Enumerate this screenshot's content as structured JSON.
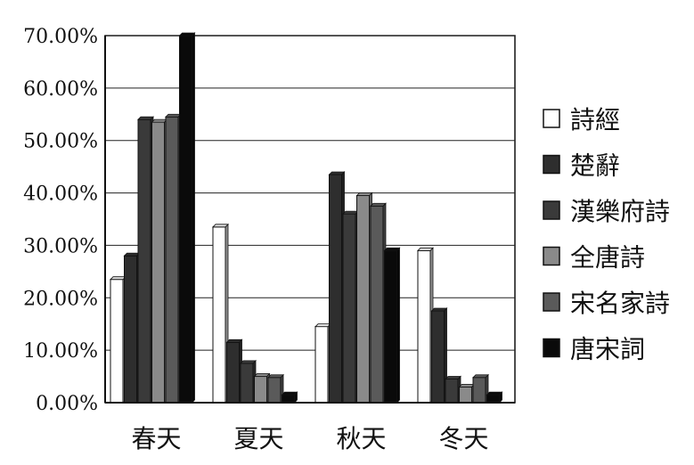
{
  "chart_data": {
    "type": "bar",
    "categories": [
      "春天",
      "夏天",
      "秋天",
      "冬天"
    ],
    "series": [
      {
        "name": "詩經",
        "values": [
          23.5,
          33.5,
          14.5,
          29.0
        ]
      },
      {
        "name": "楚辭",
        "values": [
          28.0,
          11.5,
          43.5,
          17.5
        ]
      },
      {
        "name": "漢樂府詩",
        "values": [
          54.0,
          7.5,
          36.0,
          4.5
        ]
      },
      {
        "name": "全唐詩",
        "values": [
          53.5,
          5.0,
          39.5,
          3.0
        ]
      },
      {
        "name": "宋名家詩",
        "values": [
          54.5,
          4.8,
          37.5,
          4.8
        ]
      },
      {
        "name": "唐宋詞",
        "values": [
          70.0,
          1.5,
          29.0,
          1.5
        ]
      }
    ],
    "y_ticks": [
      "0.00%",
      "10.00%",
      "20.00%",
      "30.00%",
      "40.00%",
      "50.00%",
      "60.00%",
      "70.00%"
    ],
    "ylim": [
      0,
      70
    ],
    "grid": true,
    "legend_position": "right",
    "colors": [
      "#ffffff",
      "#2e2e2e",
      "#3a3a3a",
      "#8a8a8a",
      "#5a5a5a",
      "#0a0a0a"
    ]
  }
}
